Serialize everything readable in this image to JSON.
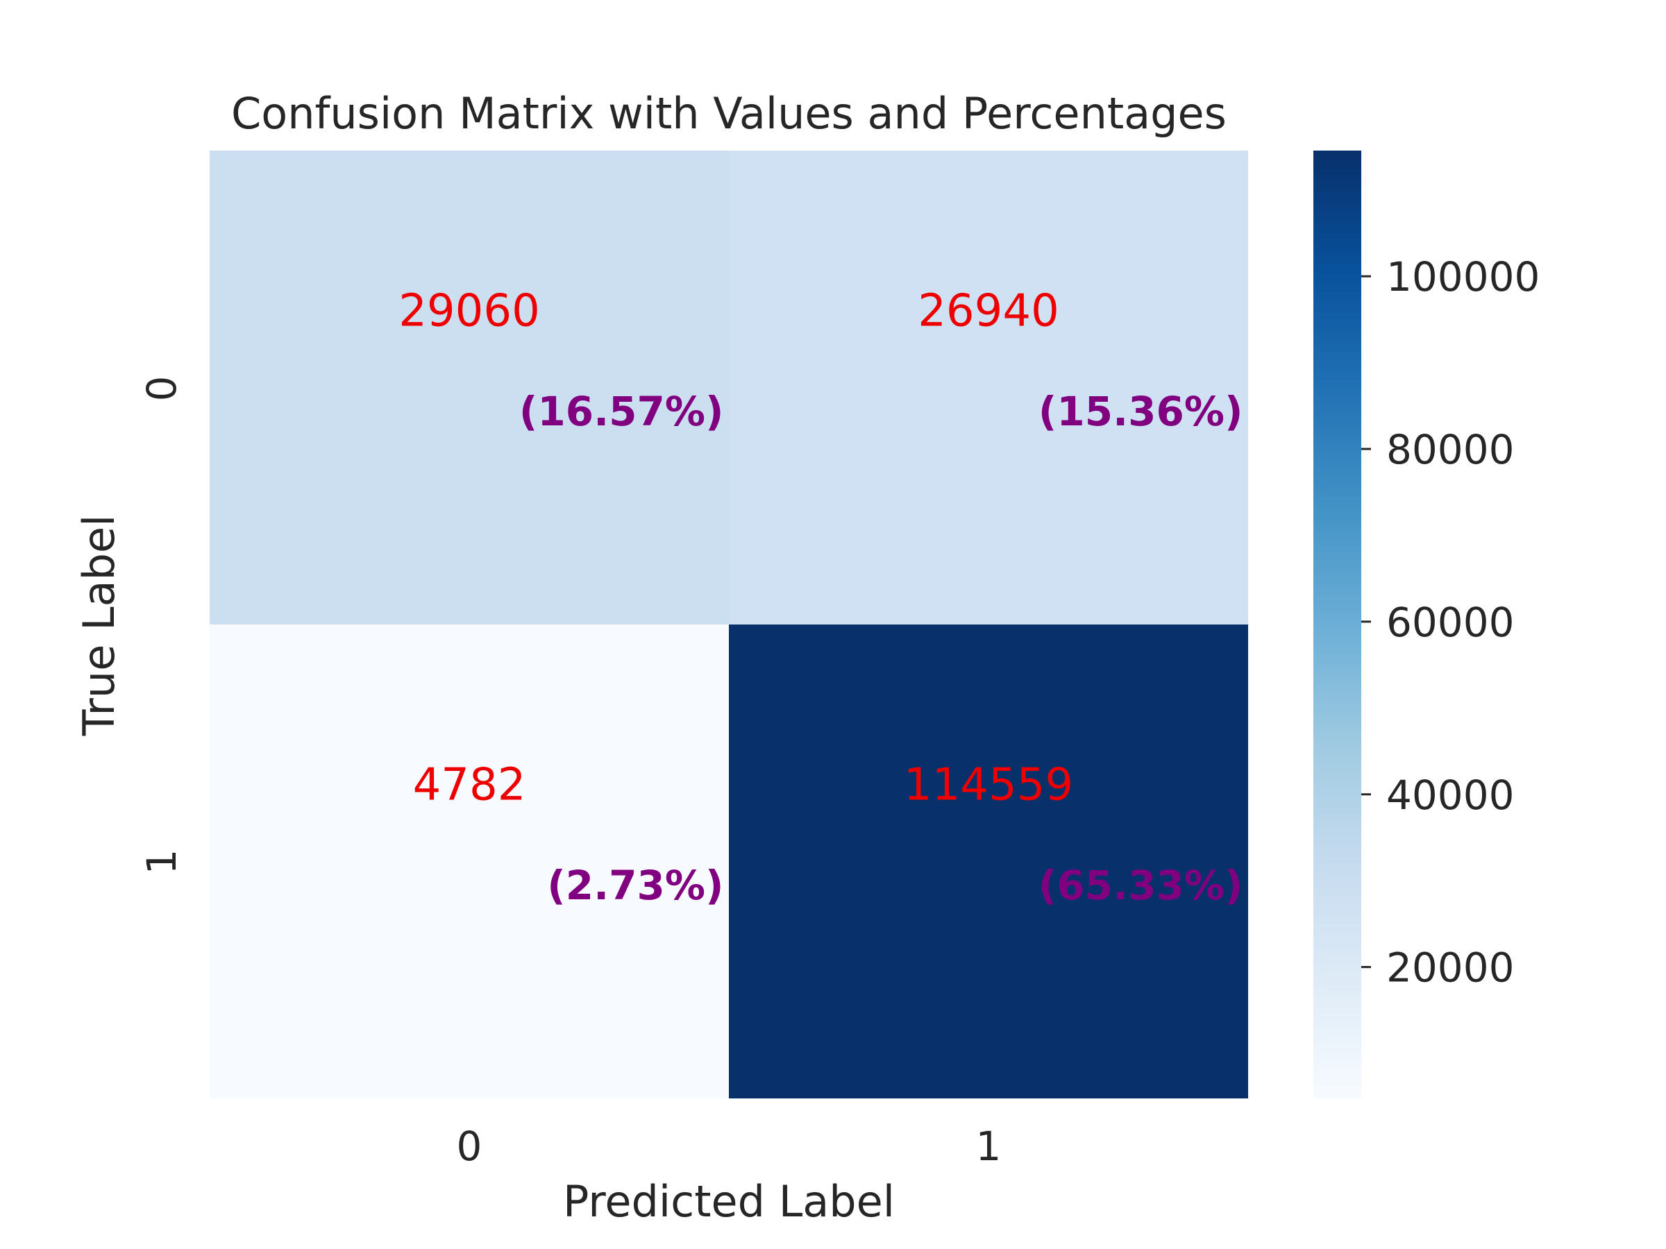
{
  "chart_data": {
    "type": "heatmap",
    "title": "Confusion Matrix with Values and Percentages",
    "xlabel": "Predicted Label",
    "ylabel": "True Label",
    "x_categories": [
      "0",
      "1"
    ],
    "y_categories": [
      "0",
      "1"
    ],
    "values": [
      [
        29060,
        26940
      ],
      [
        4782,
        114559
      ]
    ],
    "value_labels": [
      [
        "29060",
        "26940"
      ],
      [
        "4782",
        "114559"
      ]
    ],
    "percent_labels": [
      [
        "(16.57%)",
        "(15.36%)"
      ],
      [
        "(2.73%)",
        "(65.33%)"
      ]
    ],
    "colormap": "Blues",
    "colorbar": {
      "min": 4782,
      "max": 114559,
      "ticks": [
        20000,
        40000,
        60000,
        80000,
        100000
      ],
      "tick_labels": [
        "20000",
        "40000",
        "60000",
        "80000",
        "100000"
      ]
    },
    "colors": {
      "value_text": "#ee0000",
      "percent_text": "#800080"
    },
    "grid": false
  }
}
